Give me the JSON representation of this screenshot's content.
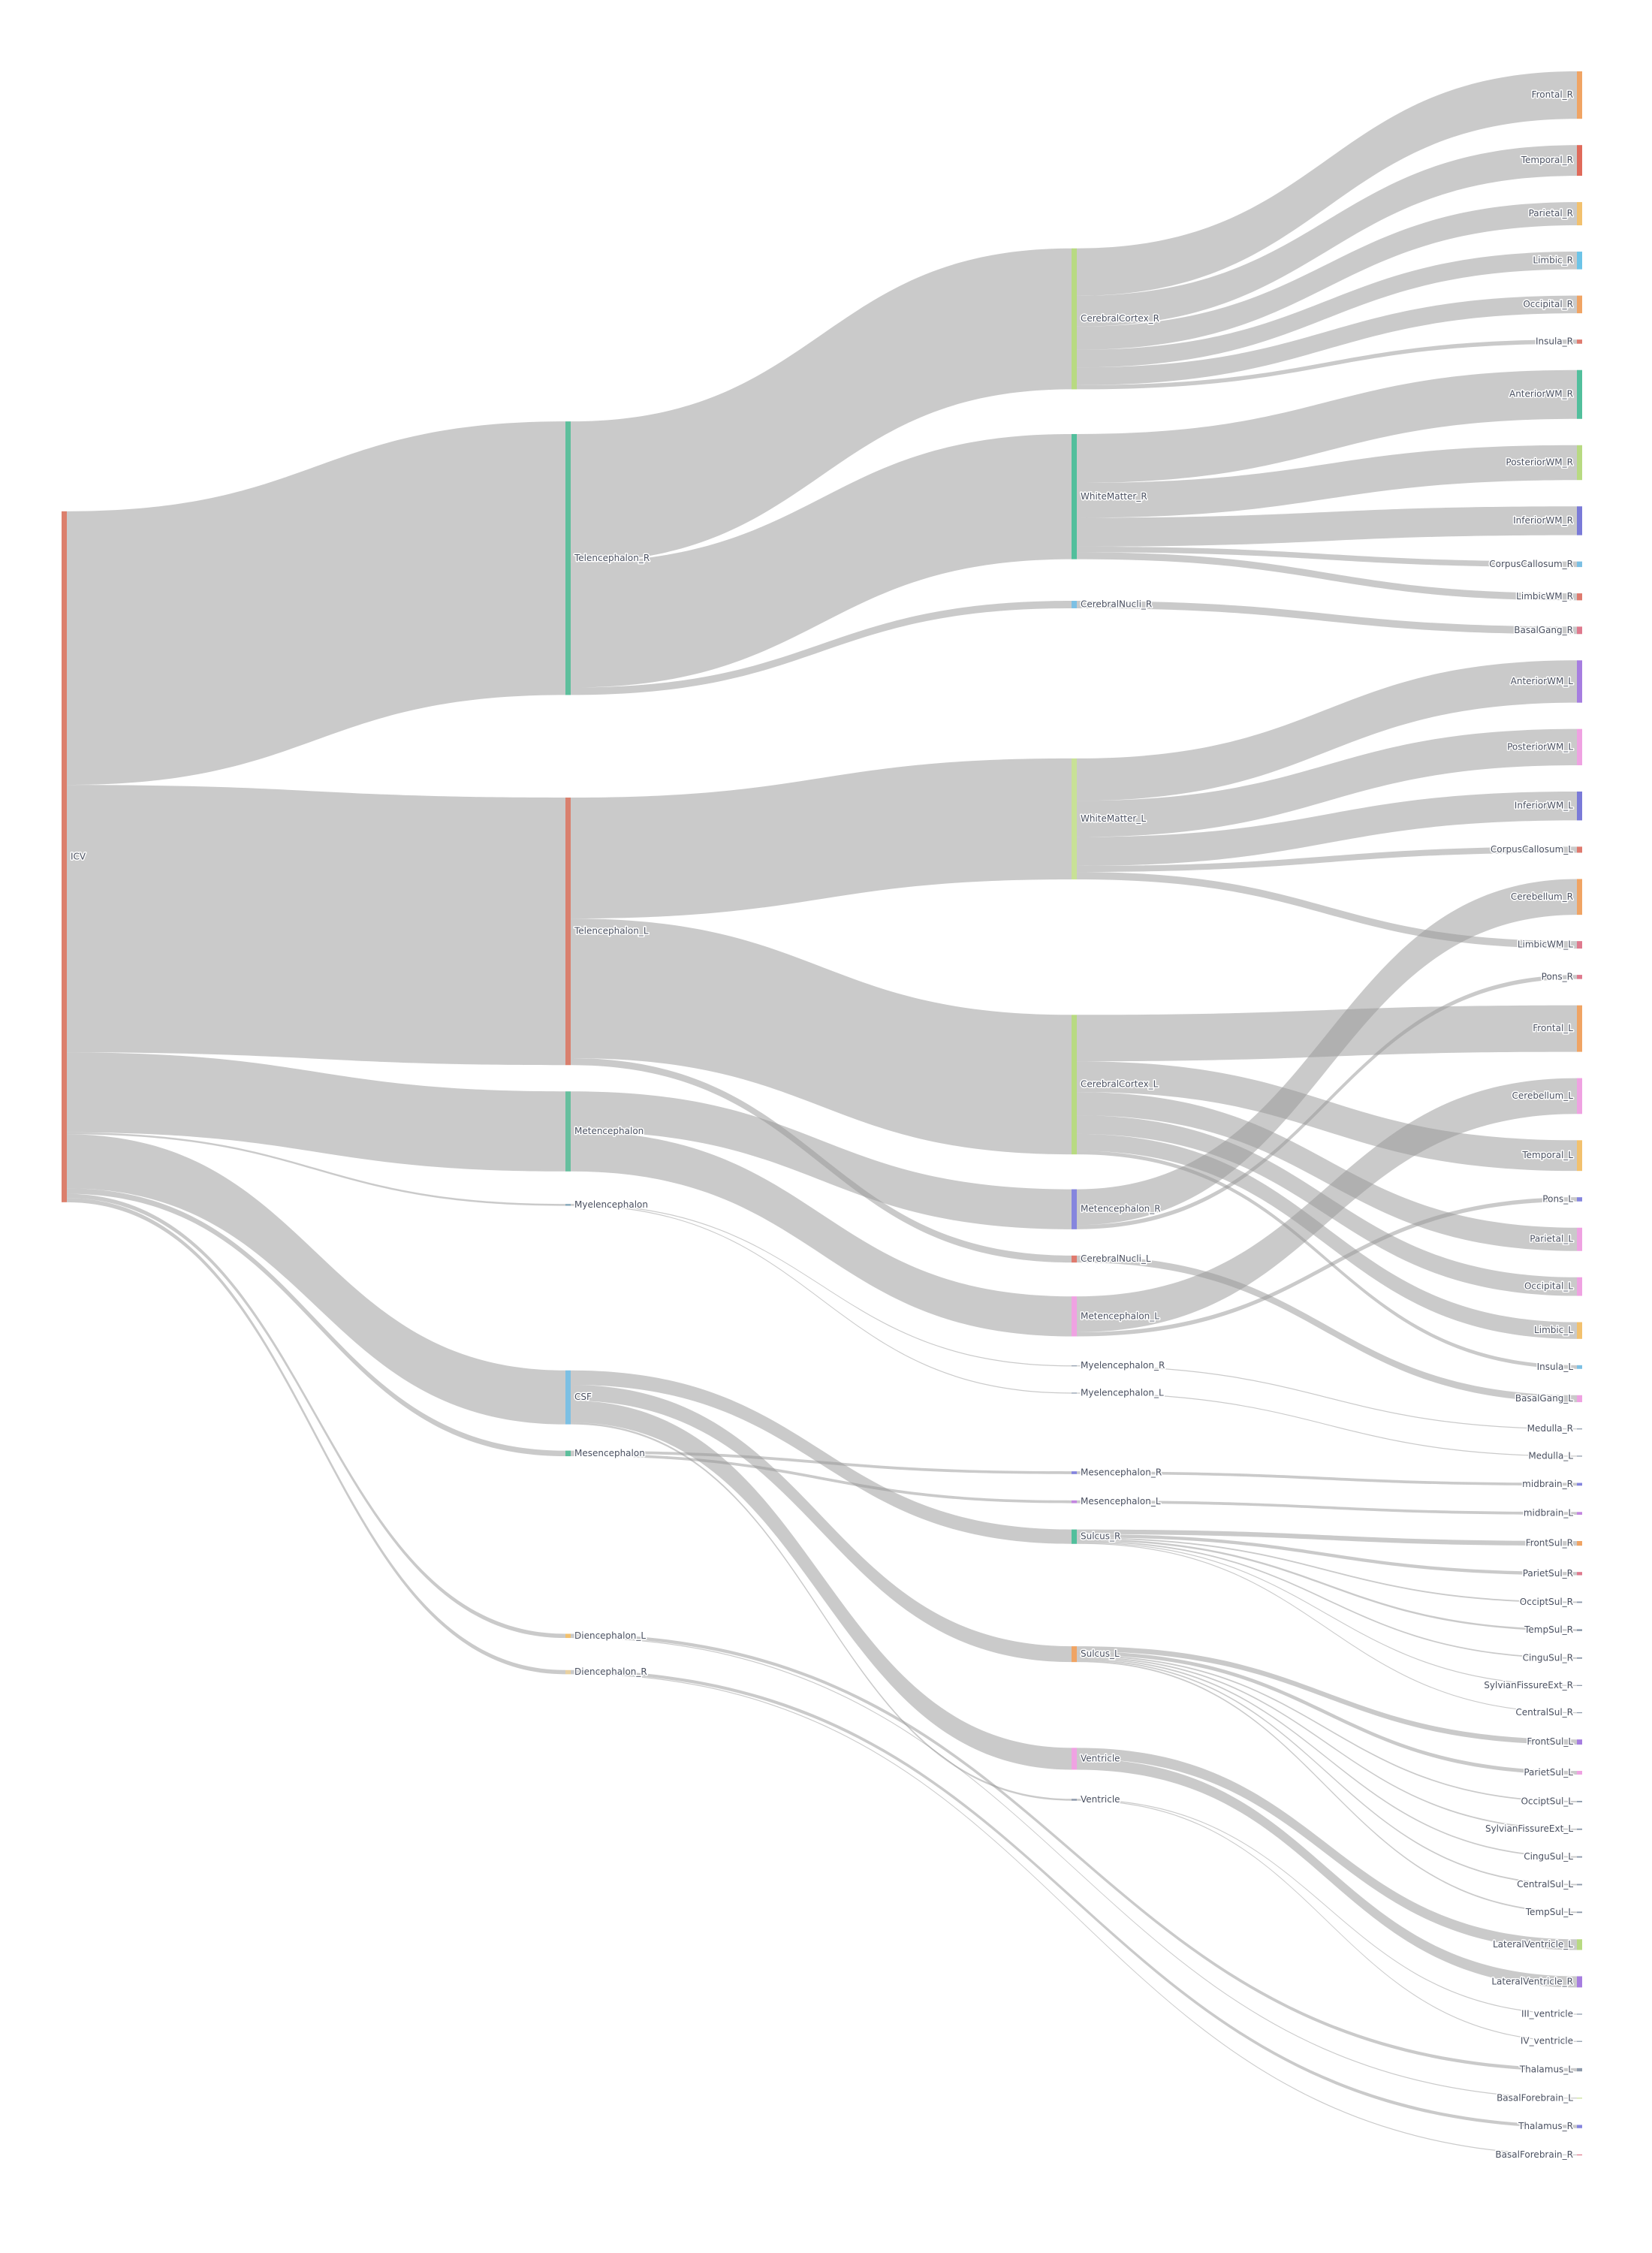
{
  "chart_data": {
    "type": "sankey",
    "link_color": "rgba(150,150,150,0.5)",
    "nodes": [
      {
        "label": "ICV",
        "color": "#dc7f6c"
      },
      {
        "label": "Telencephalon_R",
        "color": "#5dbf9c"
      },
      {
        "label": "Telencephalon_L",
        "color": "#d9806e"
      },
      {
        "label": "Metencephalon",
        "color": "#66bf9e"
      },
      {
        "label": "Myelencephalon",
        "color": "#88aabb"
      },
      {
        "label": "CSF",
        "color": "#7cc0e4"
      },
      {
        "label": "Mesencephalon",
        "color": "#5dbf9c"
      },
      {
        "label": "Diencephalon_L",
        "color": "#f2c16e"
      },
      {
        "label": "Diencephalon_R",
        "color": "#e8d0a0"
      },
      {
        "label": "CerebralCortex_R",
        "color": "#b8da82"
      },
      {
        "label": "WhiteMatter_R",
        "color": "#52bf9c"
      },
      {
        "label": "CerebralNucli_R",
        "color": "#7cc0e4"
      },
      {
        "label": "WhiteMatter_L",
        "color": "#c8e196"
      },
      {
        "label": "CerebralCortex_L",
        "color": "#b8da82"
      },
      {
        "label": "Metencephalon_R",
        "color": "#8585de"
      },
      {
        "label": "CerebralNucli_L",
        "color": "#df7a6e"
      },
      {
        "label": "Metencephalon_L",
        "color": "#efa2e2"
      },
      {
        "label": "Myelencephalon_R",
        "color": "#8c99aa"
      },
      {
        "label": "Myelencephalon_L",
        "color": "#8c99aa"
      },
      {
        "label": "Mesencephalon_R",
        "color": "#8585de"
      },
      {
        "label": "Mesencephalon_L",
        "color": "#c386e0"
      },
      {
        "label": "Sulcus_R",
        "color": "#52bf9c"
      },
      {
        "label": "Sulcus_L",
        "color": "#f0a464"
      },
      {
        "label": "Ventricle",
        "color": "#efa2e2"
      },
      {
        "label": "Ventricle",
        "color": "#8c99aa"
      },
      {
        "label": "Frontal_R",
        "color": "#f0a464"
      },
      {
        "label": "Temporal_R",
        "color": "#e06a5a"
      },
      {
        "label": "Parietal_R",
        "color": "#f2c16e"
      },
      {
        "label": "Limbic_R",
        "color": "#6cc4e8"
      },
      {
        "label": "Occipital_R",
        "color": "#f0a464"
      },
      {
        "label": "Insula_R",
        "color": "#df7a6e"
      },
      {
        "label": "AnteriorWM_R",
        "color": "#52bf9c"
      },
      {
        "label": "PosteriorWM_R",
        "color": "#b8da82"
      },
      {
        "label": "InferiorWM_R",
        "color": "#7a7ad8"
      },
      {
        "label": "CorpusCallosum_R",
        "color": "#7cc0e4"
      },
      {
        "label": "LimbicWM_R",
        "color": "#df7a6e"
      },
      {
        "label": "BasalGang_R",
        "color": "#df7a8e"
      },
      {
        "label": "AnteriorWM_L",
        "color": "#a67de0"
      },
      {
        "label": "PosteriorWM_L",
        "color": "#efa2e2"
      },
      {
        "label": "InferiorWM_L",
        "color": "#7a7ad8"
      },
      {
        "label": "CorpusCallosum_L",
        "color": "#df7a6e"
      },
      {
        "label": "Cerebellum_R",
        "color": "#f0a464"
      },
      {
        "label": "LimbicWM_L",
        "color": "#df7a8e"
      },
      {
        "label": "Pons_R",
        "color": "#df7a8e"
      },
      {
        "label": "Frontal_L",
        "color": "#f0a464"
      },
      {
        "label": "Cerebellum_L",
        "color": "#efa2e2"
      },
      {
        "label": "Temporal_L",
        "color": "#f2c16e"
      },
      {
        "label": "Pons_L",
        "color": "#8585de"
      },
      {
        "label": "Parietal_L",
        "color": "#efa2e2"
      },
      {
        "label": "Occipital_L",
        "color": "#efa2e2"
      },
      {
        "label": "Limbic_L",
        "color": "#f2c16e"
      },
      {
        "label": "Insula_L",
        "color": "#7cc0e4"
      },
      {
        "label": "BasalGang_L",
        "color": "#efa2e2"
      },
      {
        "label": "Medulla_R",
        "color": "#8c99aa"
      },
      {
        "label": "Medulla_L",
        "color": "#8c99aa"
      },
      {
        "label": "midbrain_R",
        "color": "#8585de"
      },
      {
        "label": "midbrain_L",
        "color": "#c386e0"
      },
      {
        "label": "FrontSul_R",
        "color": "#f0a464"
      },
      {
        "label": "ParietSul_R",
        "color": "#df7a8e"
      },
      {
        "label": "OcciptSul_R",
        "color": "#8c99aa"
      },
      {
        "label": "TempSul_R",
        "color": "#8c99aa"
      },
      {
        "label": "CinguSul_R",
        "color": "#8c99aa"
      },
      {
        "label": "SylvianFissureExt_R",
        "color": "#8c99aa"
      },
      {
        "label": "CentralSul_R",
        "color": "#8c99aa"
      },
      {
        "label": "FrontSul_L",
        "color": "#a67de0"
      },
      {
        "label": "ParietSul_L",
        "color": "#efa2e2"
      },
      {
        "label": "OcciptSul_L",
        "color": "#8c99aa"
      },
      {
        "label": "SylvianFissureExt_L",
        "color": "#8c99aa"
      },
      {
        "label": "CinguSul_L",
        "color": "#8c99aa"
      },
      {
        "label": "CentralSul_L",
        "color": "#8c99aa"
      },
      {
        "label": "TempSul_L",
        "color": "#8c99aa"
      },
      {
        "label": "LateralVentricle_L",
        "color": "#b8da82"
      },
      {
        "label": "LateralVentricle_R",
        "color": "#a67de0"
      },
      {
        "label": "III_ventricle",
        "color": "#8c99aa"
      },
      {
        "label": "IV_ventricle",
        "color": "#8c99aa"
      },
      {
        "label": "Thalamus_L",
        "color": "#8c99aa"
      },
      {
        "label": "BasalForebrain_L",
        "color": "#c8e196"
      },
      {
        "label": "Thalamus_R",
        "color": "#8585de"
      },
      {
        "label": "BasalForebrain_R",
        "color": "#df7a8e"
      }
    ],
    "links": [
      {
        "source": 0,
        "target": 1,
        "value": 588
      },
      {
        "source": 0,
        "target": 2,
        "value": 575
      },
      {
        "source": 0,
        "target": 3,
        "value": 172
      },
      {
        "source": 0,
        "target": 4,
        "value": 4
      },
      {
        "source": 0,
        "target": 5,
        "value": 116
      },
      {
        "source": 0,
        "target": 6,
        "value": 12
      },
      {
        "source": 0,
        "target": 7,
        "value": 9
      },
      {
        "source": 0,
        "target": 8,
        "value": 9
      },
      {
        "source": 1,
        "target": 9,
        "value": 303
      },
      {
        "source": 1,
        "target": 10,
        "value": 269
      },
      {
        "source": 1,
        "target": 11,
        "value": 16
      },
      {
        "source": 2,
        "target": 12,
        "value": 260
      },
      {
        "source": 2,
        "target": 13,
        "value": 300
      },
      {
        "source": 2,
        "target": 15,
        "value": 15
      },
      {
        "source": 3,
        "target": 14,
        "value": 86
      },
      {
        "source": 3,
        "target": 16,
        "value": 86
      },
      {
        "source": 4,
        "target": 17,
        "value": 2
      },
      {
        "source": 4,
        "target": 18,
        "value": 2
      },
      {
        "source": 5,
        "target": 21,
        "value": 31
      },
      {
        "source": 5,
        "target": 22,
        "value": 34
      },
      {
        "source": 5,
        "target": 23,
        "value": 47
      },
      {
        "source": 5,
        "target": 24,
        "value": 4
      },
      {
        "source": 6,
        "target": 19,
        "value": 6
      },
      {
        "source": 6,
        "target": 20,
        "value": 6
      },
      {
        "source": 7,
        "target": 75,
        "value": 7
      },
      {
        "source": 7,
        "target": 76,
        "value": 2
      },
      {
        "source": 8,
        "target": 77,
        "value": 7
      },
      {
        "source": 8,
        "target": 78,
        "value": 2
      },
      {
        "source": 9,
        "target": 25,
        "value": 102
      },
      {
        "source": 9,
        "target": 26,
        "value": 66
      },
      {
        "source": 9,
        "target": 27,
        "value": 50
      },
      {
        "source": 9,
        "target": 28,
        "value": 38
      },
      {
        "source": 9,
        "target": 29,
        "value": 38
      },
      {
        "source": 9,
        "target": 30,
        "value": 9
      },
      {
        "source": 10,
        "target": 31,
        "value": 105
      },
      {
        "source": 10,
        "target": 32,
        "value": 75
      },
      {
        "source": 10,
        "target": 33,
        "value": 62
      },
      {
        "source": 10,
        "target": 34,
        "value": 12
      },
      {
        "source": 10,
        "target": 35,
        "value": 15
      },
      {
        "source": 11,
        "target": 36,
        "value": 16
      },
      {
        "source": 12,
        "target": 37,
        "value": 91
      },
      {
        "source": 12,
        "target": 38,
        "value": 78
      },
      {
        "source": 12,
        "target": 39,
        "value": 62
      },
      {
        "source": 12,
        "target": 40,
        "value": 13
      },
      {
        "source": 12,
        "target": 42,
        "value": 16
      },
      {
        "source": 13,
        "target": 44,
        "value": 100
      },
      {
        "source": 13,
        "target": 46,
        "value": 66
      },
      {
        "source": 13,
        "target": 48,
        "value": 50
      },
      {
        "source": 13,
        "target": 49,
        "value": 40
      },
      {
        "source": 13,
        "target": 50,
        "value": 36
      },
      {
        "source": 13,
        "target": 51,
        "value": 8
      },
      {
        "source": 14,
        "target": 41,
        "value": 77
      },
      {
        "source": 14,
        "target": 43,
        "value": 9
      },
      {
        "source": 15,
        "target": 52,
        "value": 15
      },
      {
        "source": 16,
        "target": 45,
        "value": 77
      },
      {
        "source": 16,
        "target": 47,
        "value": 9
      },
      {
        "source": 17,
        "target": 53,
        "value": 2
      },
      {
        "source": 18,
        "target": 54,
        "value": 2
      },
      {
        "source": 19,
        "target": 55,
        "value": 6
      },
      {
        "source": 20,
        "target": 56,
        "value": 6
      },
      {
        "source": 21,
        "target": 57,
        "value": 10
      },
      {
        "source": 21,
        "target": 58,
        "value": 7
      },
      {
        "source": 21,
        "target": 59,
        "value": 3
      },
      {
        "source": 21,
        "target": 60,
        "value": 4
      },
      {
        "source": 21,
        "target": 61,
        "value": 3
      },
      {
        "source": 21,
        "target": 62,
        "value": 2
      },
      {
        "source": 21,
        "target": 63,
        "value": 2
      },
      {
        "source": 22,
        "target": 64,
        "value": 11
      },
      {
        "source": 22,
        "target": 65,
        "value": 8
      },
      {
        "source": 22,
        "target": 66,
        "value": 3
      },
      {
        "source": 22,
        "target": 67,
        "value": 3
      },
      {
        "source": 22,
        "target": 68,
        "value": 3
      },
      {
        "source": 22,
        "target": 69,
        "value": 3
      },
      {
        "source": 22,
        "target": 70,
        "value": 3
      },
      {
        "source": 23,
        "target": 71,
        "value": 23
      },
      {
        "source": 23,
        "target": 72,
        "value": 24
      },
      {
        "source": 24,
        "target": 73,
        "value": 2
      },
      {
        "source": 24,
        "target": 74,
        "value": 2
      }
    ]
  }
}
